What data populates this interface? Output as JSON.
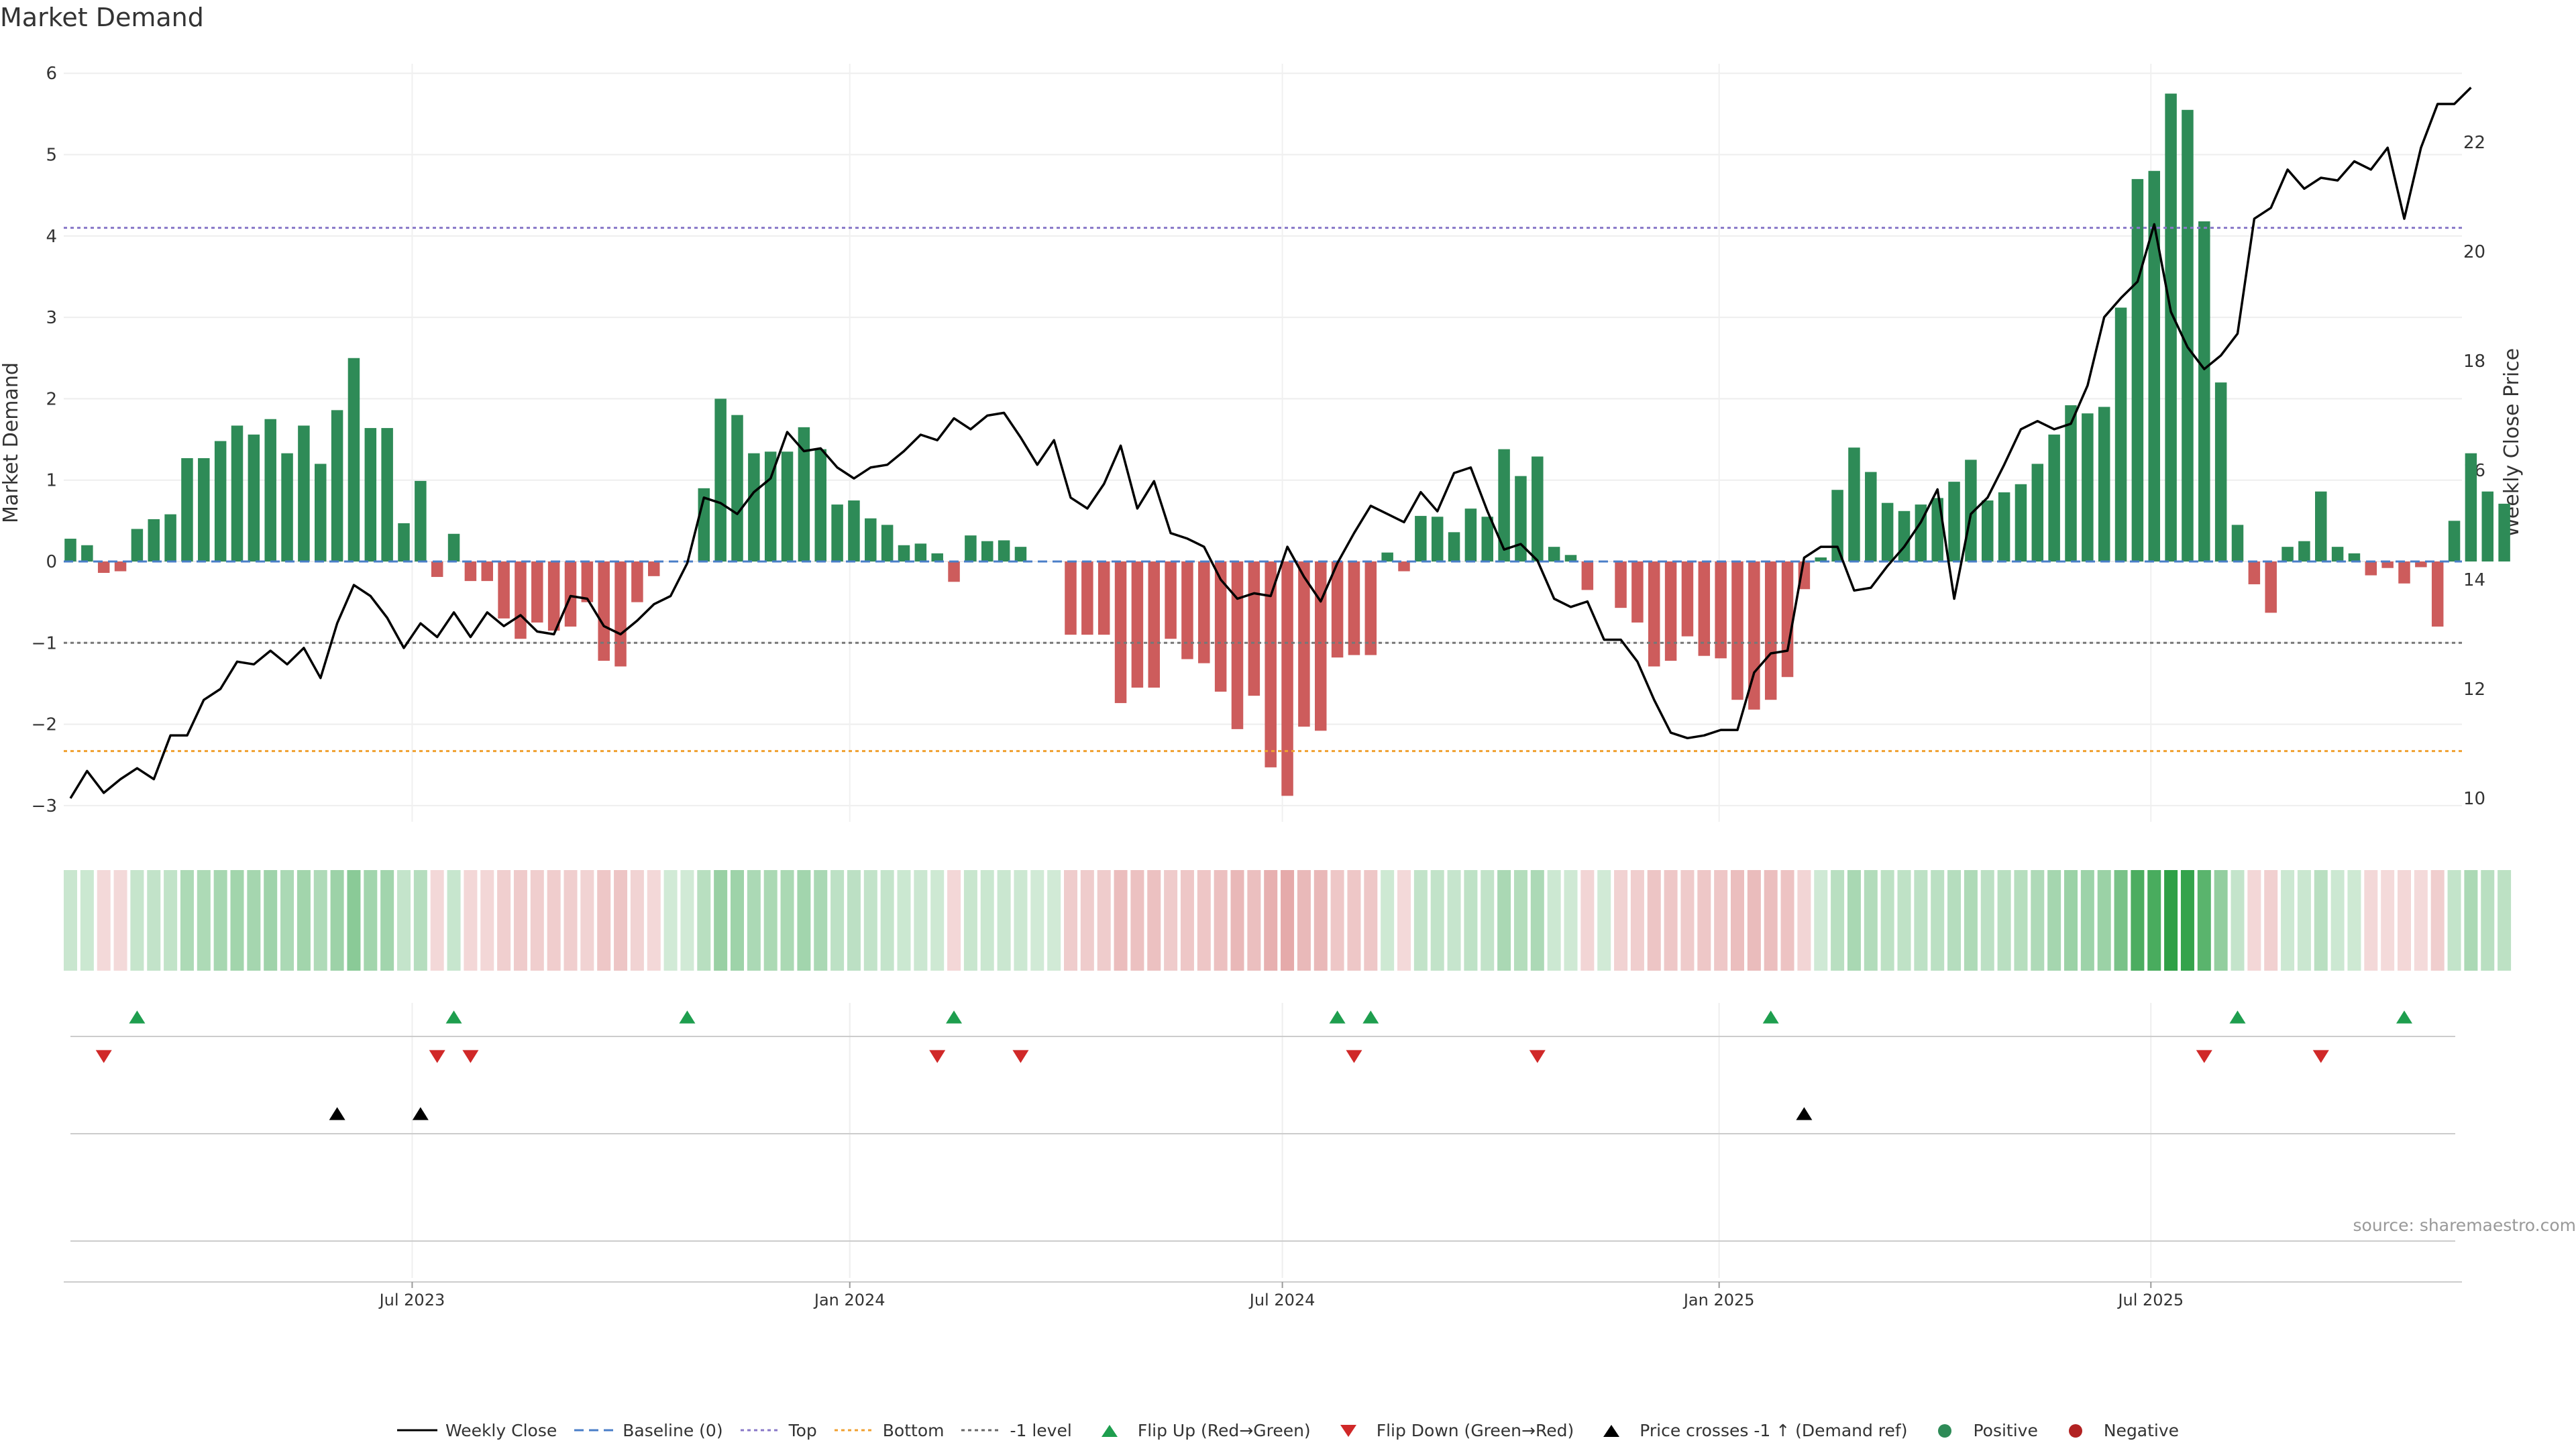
{
  "title": "Market Demand",
  "source": "source: sharemaestro.com",
  "colors": {
    "positive": "#2e8b57",
    "negative": "#cd5c5c",
    "price": "#000000",
    "top": "#8878c8",
    "bottom": "#f0a030",
    "minus_one": "#777777",
    "flip_up": "#1e9e4e",
    "flip_down": "#d02828",
    "cross": "#000000"
  },
  "legend": [
    {
      "key": "line-solid",
      "label": "Weekly Close",
      "color": "#000000"
    },
    {
      "key": "line-dash",
      "label": "Baseline (0)",
      "color": "#4a7ec8"
    },
    {
      "key": "line-dot",
      "label": "Top",
      "color": "#8878c8"
    },
    {
      "key": "line-dot",
      "label": "Bottom",
      "color": "#f0a030"
    },
    {
      "key": "line-dot",
      "label": "-1 level",
      "color": "#666666"
    },
    {
      "key": "tri-up",
      "label": "Flip Up (Red→Green)",
      "color": "#1e9e4e"
    },
    {
      "key": "tri-down",
      "label": "Flip Down (Green→Red)",
      "color": "#d02828"
    },
    {
      "key": "tri-up",
      "label": "Price crosses -1 ↑ (Demand ref)",
      "color": "#000000"
    },
    {
      "key": "dot",
      "label": "Positive",
      "color": "#2e8b57"
    },
    {
      "key": "dot",
      "label": "Negative",
      "color": "#b22222"
    }
  ],
  "chart_data": {
    "type": "bar",
    "title": "Market Demand",
    "ylabel": "Market Demand",
    "y2label": "Weekly Close Price",
    "ylim": [
      -3.25,
      6.15
    ],
    "y2lim": [
      9.9,
      23.8
    ],
    "yticks": [
      -3,
      -2,
      -1,
      0,
      1,
      2,
      3,
      4,
      5,
      6
    ],
    "y2ticks": [
      10,
      12,
      14,
      16,
      18,
      20,
      22
    ],
    "reference_lines": {
      "top": 4.1,
      "bottom": -2.33,
      "minus_one": -1,
      "baseline": 0
    },
    "x_ticks": [
      {
        "label": "Jul 2023",
        "index": 20.5
      },
      {
        "label": "Jan 2024",
        "index": 46.75
      },
      {
        "label": "Jul 2024",
        "index": 72.7
      },
      {
        "label": "Jan 2025",
        "index": 98.9
      },
      {
        "label": "Jul 2025",
        "index": 124.8
      }
    ],
    "demand": [
      0.28,
      0.2,
      -0.14,
      -0.12,
      0.4,
      0.52,
      0.58,
      1.27,
      1.27,
      1.48,
      1.67,
      1.56,
      1.75,
      1.33,
      1.67,
      1.2,
      1.86,
      2.5,
      1.64,
      1.64,
      0.47,
      0.99,
      -0.19,
      0.34,
      -0.24,
      -0.24,
      -0.7,
      -0.95,
      -0.75,
      -0.85,
      -0.8,
      -0.5,
      -1.22,
      -1.29,
      -0.5,
      -0.18,
      0.0,
      0.0,
      0.9,
      2.0,
      1.8,
      1.33,
      1.35,
      1.35,
      1.65,
      1.38,
      0.7,
      0.75,
      0.53,
      0.45,
      0.2,
      0.22,
      0.1,
      -0.25,
      0.32,
      0.25,
      0.26,
      0.18,
      0.0,
      0.0,
      -0.9,
      -0.9,
      -0.9,
      -1.74,
      -1.55,
      -1.55,
      -0.95,
      -1.2,
      -1.25,
      -1.6,
      -2.06,
      -1.65,
      -2.53,
      -2.88,
      -2.03,
      -2.08,
      -1.18,
      -1.15,
      -1.15,
      0.11,
      -0.12,
      0.56,
      0.55,
      0.36,
      0.65,
      0.55,
      1.38,
      1.05,
      1.29,
      0.18,
      0.08,
      -0.35,
      0.0,
      -0.57,
      -0.75,
      -1.29,
      -1.22,
      -0.92,
      -1.16,
      -1.19,
      -1.7,
      -1.82,
      -1.7,
      -1.42,
      -0.34,
      0.05,
      0.88,
      1.4,
      1.1,
      0.72,
      0.62,
      0.7,
      0.78,
      0.98,
      1.25,
      0.75,
      0.85,
      0.95,
      1.2,
      1.56,
      1.92,
      1.82,
      1.9,
      3.12,
      4.7,
      4.8,
      5.75,
      5.55,
      4.18,
      2.2,
      0.45,
      -0.28,
      -0.63,
      0.18,
      0.25,
      0.86,
      0.18,
      0.1,
      -0.17,
      -0.08,
      -0.27,
      -0.07,
      -0.8,
      0.5,
      1.33,
      0.86,
      0.71
    ],
    "price": [
      10.0,
      10.5,
      10.1,
      10.35,
      10.55,
      10.35,
      11.15,
      11.15,
      11.8,
      12.0,
      12.5,
      12.45,
      12.7,
      12.45,
      12.75,
      12.2,
      13.2,
      13.9,
      13.7,
      13.3,
      12.75,
      13.2,
      12.95,
      13.4,
      12.95,
      13.4,
      13.15,
      13.35,
      13.05,
      13.0,
      13.7,
      13.65,
      13.15,
      13.0,
      13.25,
      13.55,
      13.7,
      14.3,
      15.5,
      15.4,
      15.2,
      15.6,
      15.85,
      16.7,
      16.35,
      16.4,
      16.05,
      15.85,
      16.05,
      16.1,
      16.35,
      16.65,
      16.55,
      16.95,
      16.75,
      17.0,
      17.05,
      16.6,
      16.1,
      16.55,
      15.5,
      15.3,
      15.75,
      16.45,
      15.3,
      15.8,
      14.85,
      14.75,
      14.6,
      14.0,
      13.65,
      13.75,
      13.7,
      14.6,
      14.05,
      13.6,
      14.3,
      14.85,
      15.35,
      15.2,
      15.05,
      15.6,
      15.25,
      15.95,
      16.05,
      15.25,
      14.55,
      14.65,
      14.35,
      13.65,
      13.5,
      13.6,
      12.9,
      12.9,
      12.5,
      11.8,
      11.2,
      11.1,
      11.15,
      11.25,
      11.25,
      12.3,
      12.65,
      12.7,
      14.4,
      14.6,
      14.6,
      13.8,
      13.85,
      14.25,
      14.6,
      15.05,
      15.65,
      13.65,
      15.2,
      15.5,
      16.1,
      16.75,
      16.9,
      16.75,
      16.85,
      17.55,
      18.8,
      19.15,
      19.45,
      20.5,
      18.9,
      18.25,
      17.85,
      18.1,
      18.5,
      20.6,
      20.8,
      21.5,
      21.15,
      21.35,
      21.3,
      21.65,
      21.5,
      21.9,
      20.6,
      21.9,
      22.7,
      22.7,
      23.0
    ],
    "flip_up_index": [
      4,
      23,
      37,
      53,
      76,
      78,
      102,
      130,
      140
    ],
    "flip_down_index": [
      2,
      22,
      24,
      52,
      57,
      77,
      88,
      128,
      135
    ],
    "price_cross_index": [
      16,
      21,
      104
    ]
  }
}
